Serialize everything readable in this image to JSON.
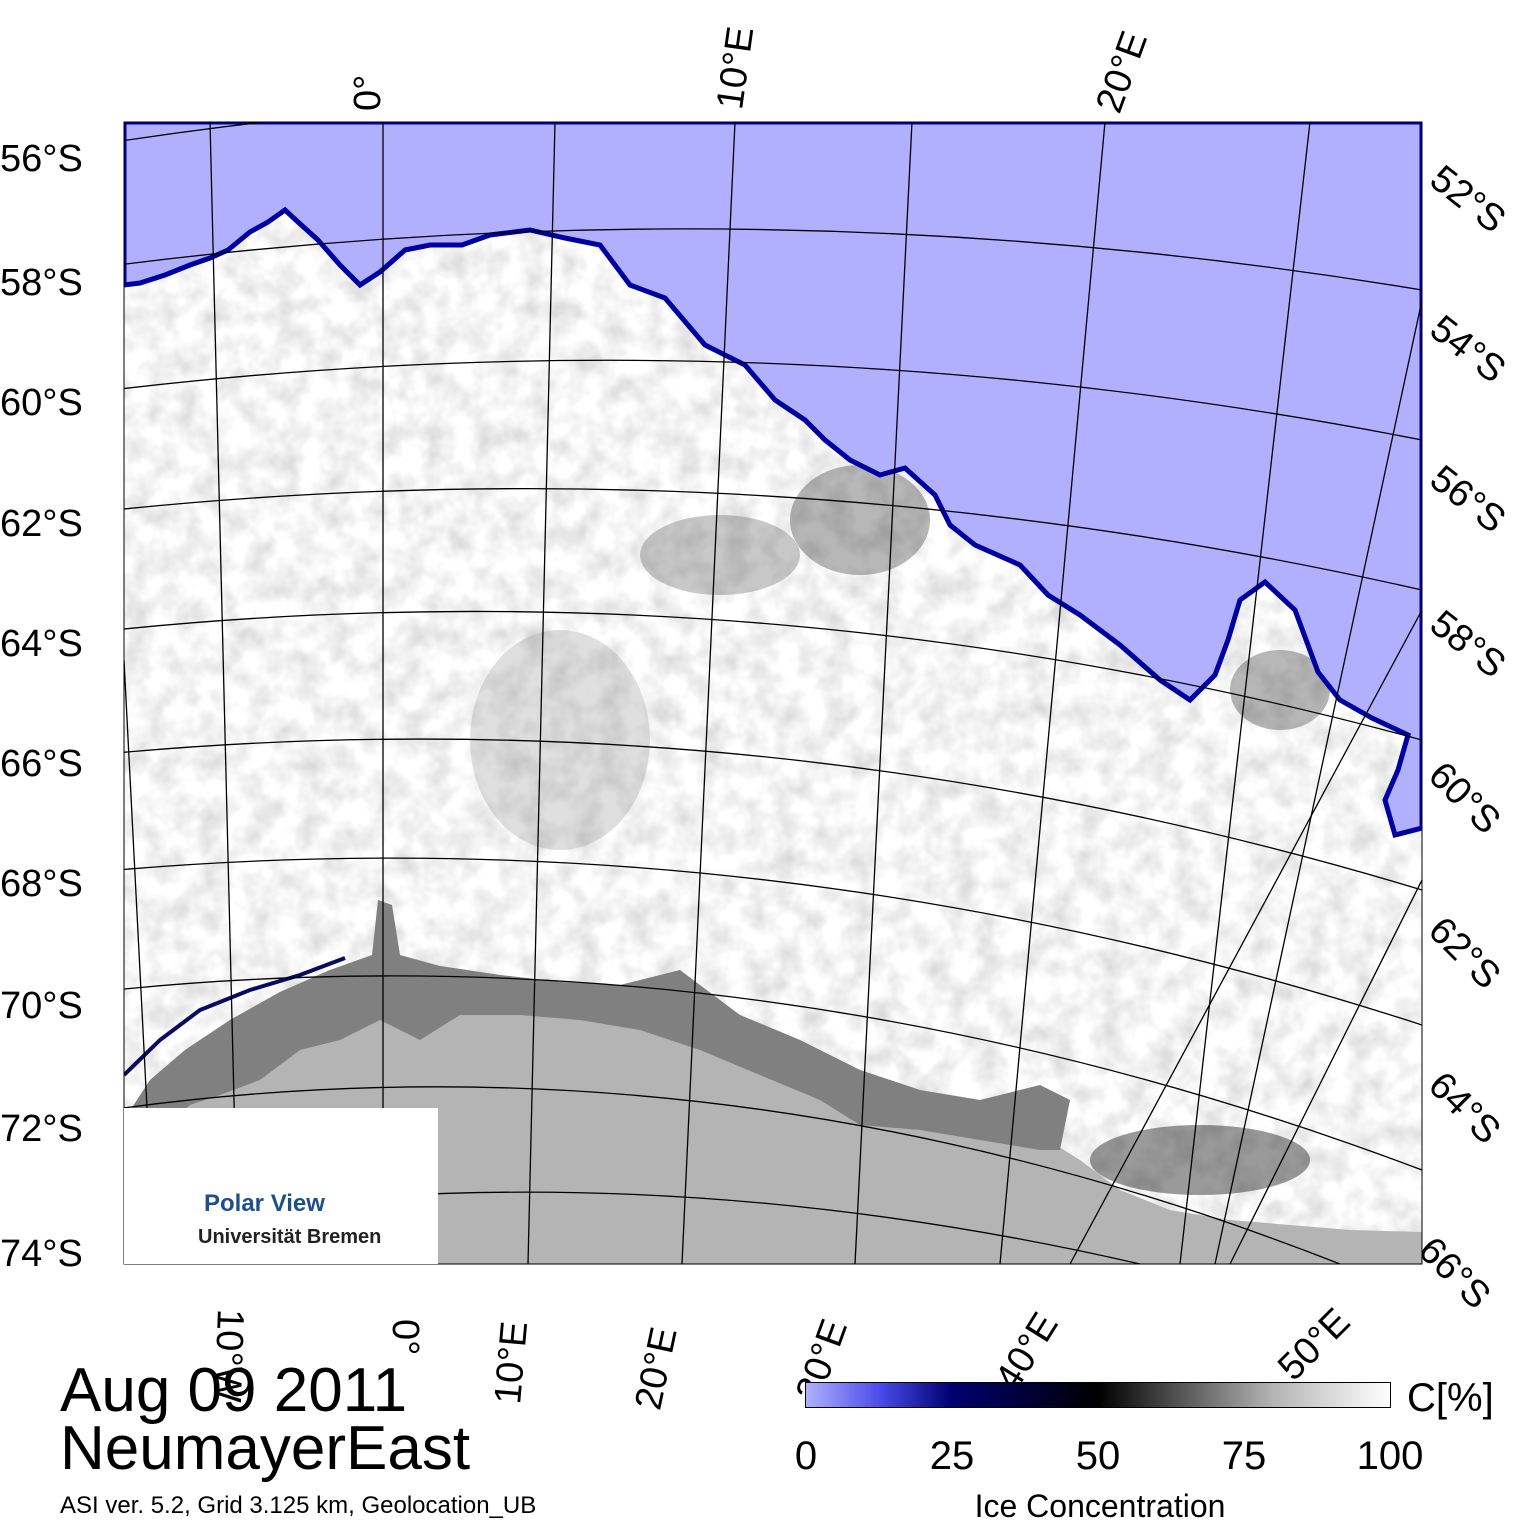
{
  "map": {
    "latitude_labels_left": [
      "56°S",
      "58°S",
      "60°S",
      "62°S",
      "64°S",
      "66°S",
      "68°S",
      "70°S",
      "72°S",
      "74°S"
    ],
    "latitude_labels_right": [
      "52°S",
      "54°S",
      "56°S",
      "58°S",
      "60°S",
      "62°S",
      "64°S",
      "66°S"
    ],
    "longitude_labels_top": [
      "0°",
      "10°E",
      "20°E"
    ],
    "longitude_labels_bottom": [
      "10°W",
      "0°",
      "10°E",
      "20°E",
      "30°E",
      "40°E",
      "50°E"
    ],
    "colors": {
      "open_water": "#b0b0ff",
      "ice_edge": "#0000a0",
      "land_ice_shelf": "#808080",
      "land": "#b4b4b4",
      "sea_ice": "#ffffff"
    }
  },
  "logo": {
    "title": "Polar View",
    "institution": "Universität Bremen"
  },
  "caption": {
    "date": "Aug 09 2011",
    "region": "NeumayerEast",
    "info": "ASI ver. 5.2,  Grid 3.125 km, Geolocation_UB"
  },
  "colorbar": {
    "unit": "C[%]",
    "ticks": [
      "0",
      "25",
      "50",
      "75",
      "100"
    ],
    "title": "Ice Concentration",
    "range": [
      0,
      100
    ]
  }
}
